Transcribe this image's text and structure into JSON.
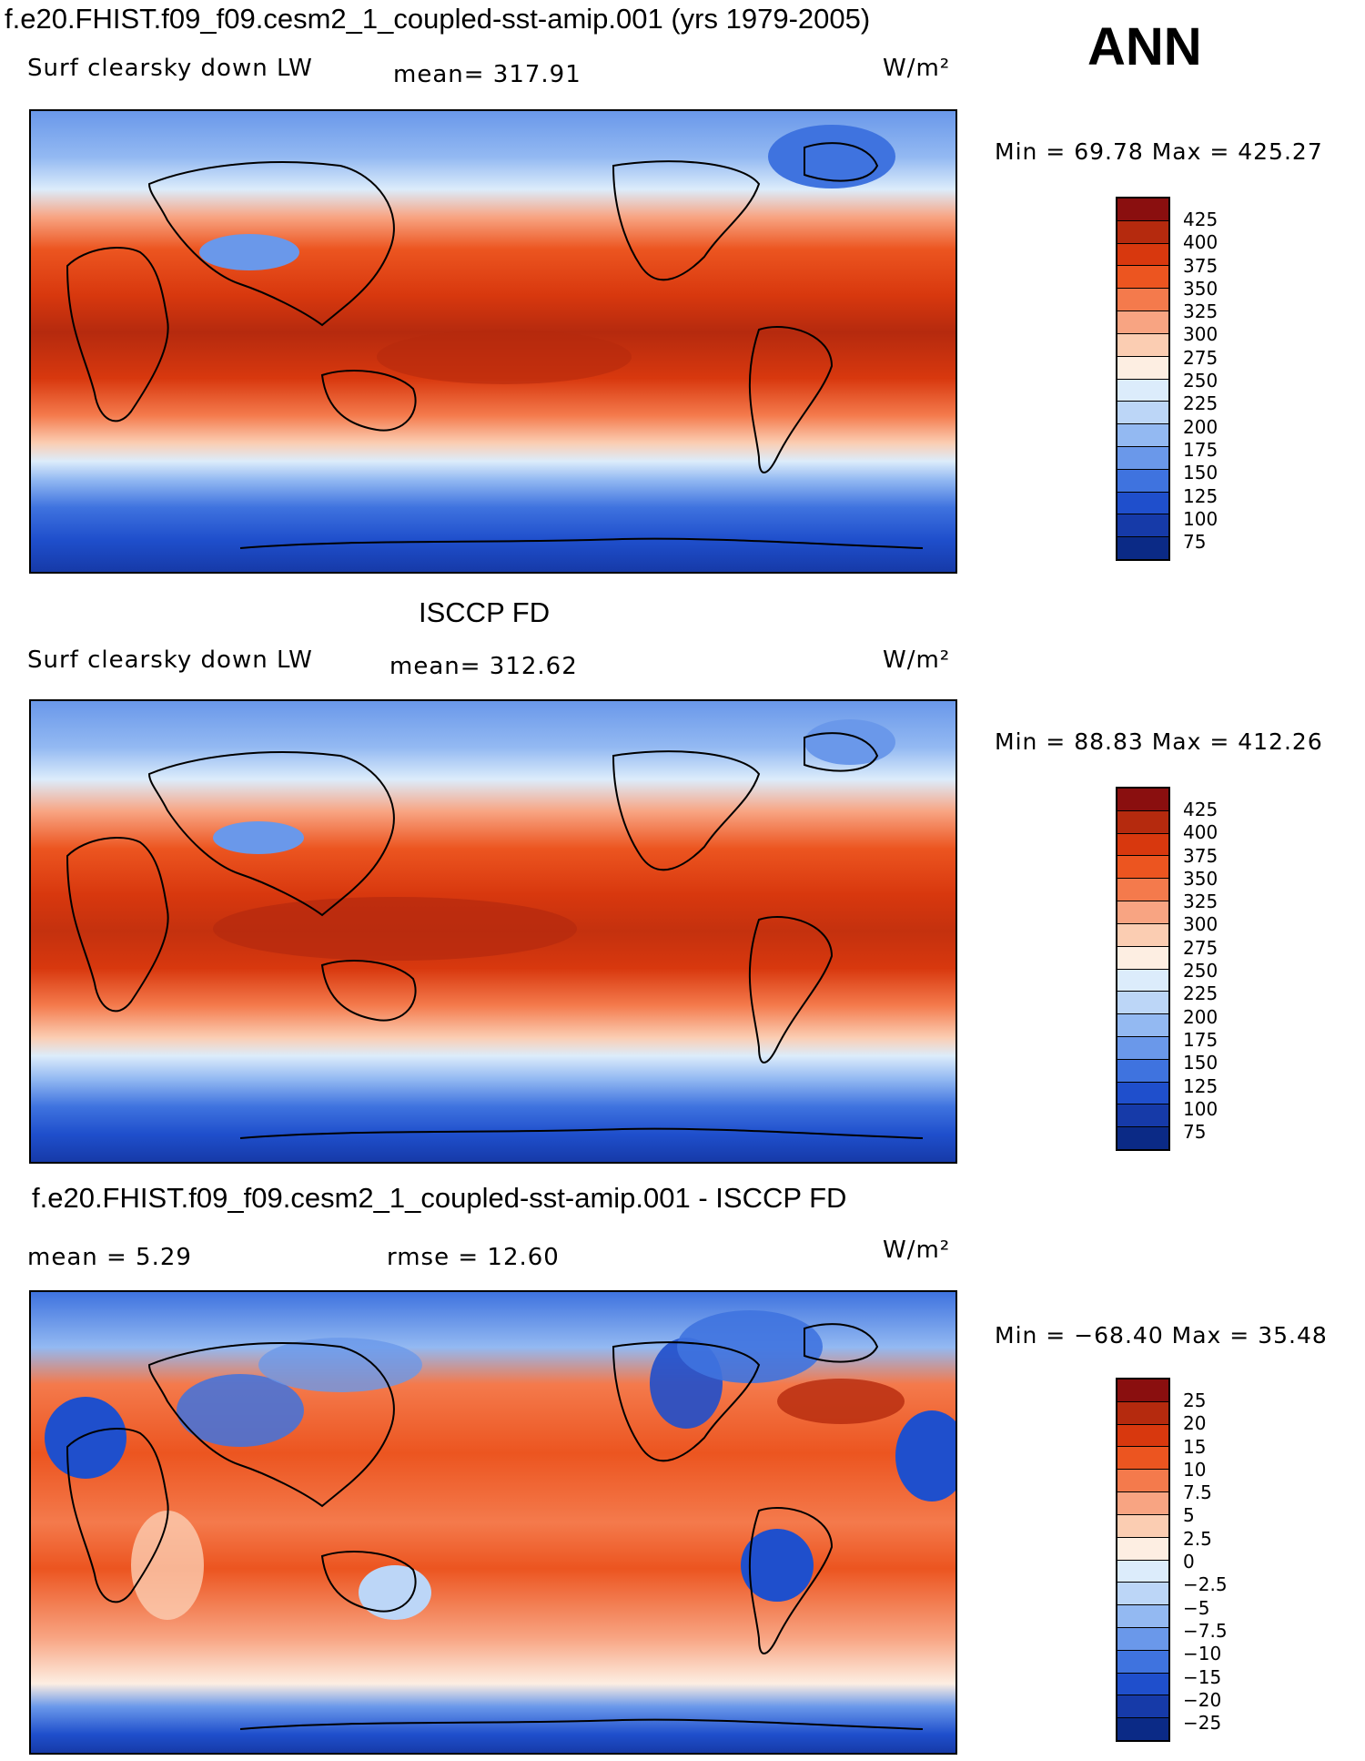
{
  "season": "ANN",
  "units": "W/m²",
  "panels": [
    {
      "title": "f.e20.FHIST.f09_f09.cesm2_1_coupled-sst-amip.001 (yrs 1979-2005)",
      "subtitle": "Surf clearsky down LW",
      "mean": "mean= 317.91",
      "minmax": "Min =   69.78 Max = 425.27",
      "colorbar_labels": [
        "425",
        "400",
        "375",
        "350",
        "325",
        "300",
        "275",
        "250",
        "225",
        "200",
        "175",
        "150",
        "125",
        "100",
        "75"
      ]
    },
    {
      "title": "ISCCP FD",
      "subtitle": "Surf clearsky down LW",
      "mean": "mean= 312.62",
      "minmax": "Min =   88.83 Max = 412.26",
      "colorbar_labels": [
        "425",
        "400",
        "375",
        "350",
        "325",
        "300",
        "275",
        "250",
        "225",
        "200",
        "175",
        "150",
        "125",
        "100",
        "75"
      ]
    },
    {
      "title": "f.e20.FHIST.f09_f09.cesm2_1_coupled-sst-amip.001 - ISCCP FD",
      "mean": "mean =     5.29",
      "rmse": "rmse =    12.60",
      "minmax": "Min = −68.40 Max =   35.48",
      "colorbar_labels": [
        "25",
        "20",
        "15",
        "10",
        "7.5",
        "5",
        "2.5",
        "0",
        "−2.5",
        "−5",
        "−7.5",
        "−10",
        "−15",
        "−20",
        "−25"
      ]
    }
  ],
  "colors": {
    "abs_scale": [
      "#8a0f0f",
      "#b52a0e",
      "#d8380e",
      "#ec5520",
      "#f47a4c",
      "#f8a482",
      "#fbcdb2",
      "#fdeee2",
      "#dcecfb",
      "#bcd6f7",
      "#93b9f2",
      "#6a98ea",
      "#3f73df",
      "#1f4fcc",
      "#163aa8",
      "#0b2a86"
    ],
    "diff_scale": [
      "#8a0f0f",
      "#b52a0e",
      "#d8380e",
      "#ec5520",
      "#f47a4c",
      "#f8a482",
      "#fbcdb2",
      "#fdeee2",
      "#dcecfb",
      "#bcd6f7",
      "#93b9f2",
      "#6a98ea",
      "#3f73df",
      "#1f4fcc",
      "#163aa8",
      "#0b2a86"
    ]
  }
}
